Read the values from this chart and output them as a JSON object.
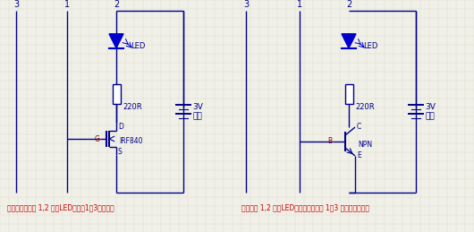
{
  "bg_color": "#f0f0e8",
  "line_color": "#00008B",
  "text_color": "#00008B",
  "caption_color": "#CC0000",
  "caption_left": "说明：用手触摸 1,2 之间LED灯亮，1和3之间灯灯",
  "caption_right": "用手触摸 1,2 之间LED灯会亮吗？触摸 1和3 之间会不会亮？",
  "left_label": "IRF840",
  "right_label": "NPN",
  "resistor_label": "220R",
  "voltage_label": "3V",
  "power_label": "电源",
  "led_label": "LED",
  "grid_color": "#d8d8c8"
}
